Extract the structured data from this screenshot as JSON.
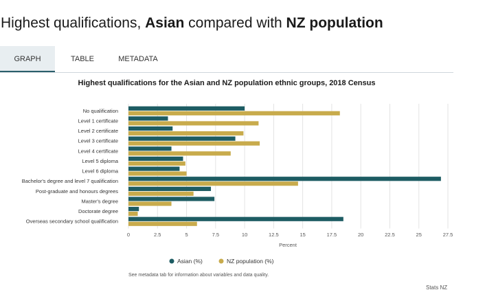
{
  "page": {
    "title_parts": [
      "Highest qualifications, ",
      "Asian",
      " compared with ",
      "NZ population"
    ]
  },
  "tabs": [
    {
      "label": "GRAPH",
      "active": true
    },
    {
      "label": "TABLE",
      "active": false
    },
    {
      "label": "METADATA",
      "active": false
    }
  ],
  "note": "See metadata tab for information about variables and data quality.",
  "source": "Stats NZ",
  "chart_data": {
    "type": "bar",
    "orientation": "horizontal",
    "title": "Highest qualifications for the Asian and NZ population ethnic groups, 2018 Census",
    "xlabel": "Percent",
    "ylabel": "",
    "xlim": [
      0,
      27.5
    ],
    "x_ticks": [
      "0",
      "2.5",
      "5",
      "7.5",
      "10",
      "12.5",
      "15",
      "17.5",
      "20",
      "22.5",
      "25",
      "27.5"
    ],
    "grid": "vertical",
    "legend_position": "bottom",
    "categories": [
      "No qualification",
      "Level 1 certificate",
      "Level 2 certificate",
      "Level 3 certificate",
      "Level 4 certificate",
      "Level 5 diploma",
      "Level 6 diploma",
      "Bachelor's degree and level 7 qualification",
      "Post-graduate and honours degrees",
      "Master's degree",
      "Doctorate degree",
      "Overseas secondary school qualification"
    ],
    "series": [
      {
        "name": "Asian (%)",
        "color": "#1d5c63",
        "values": [
          10.0,
          3.4,
          3.8,
          9.2,
          3.7,
          4.7,
          4.4,
          26.9,
          7.1,
          7.4,
          0.9,
          18.5
        ]
      },
      {
        "name": "NZ population (%)",
        "color": "#c8ab4c",
        "values": [
          18.2,
          11.2,
          9.9,
          11.3,
          8.8,
          4.9,
          5.0,
          14.6,
          5.6,
          3.7,
          0.8,
          5.9
        ]
      }
    ]
  }
}
